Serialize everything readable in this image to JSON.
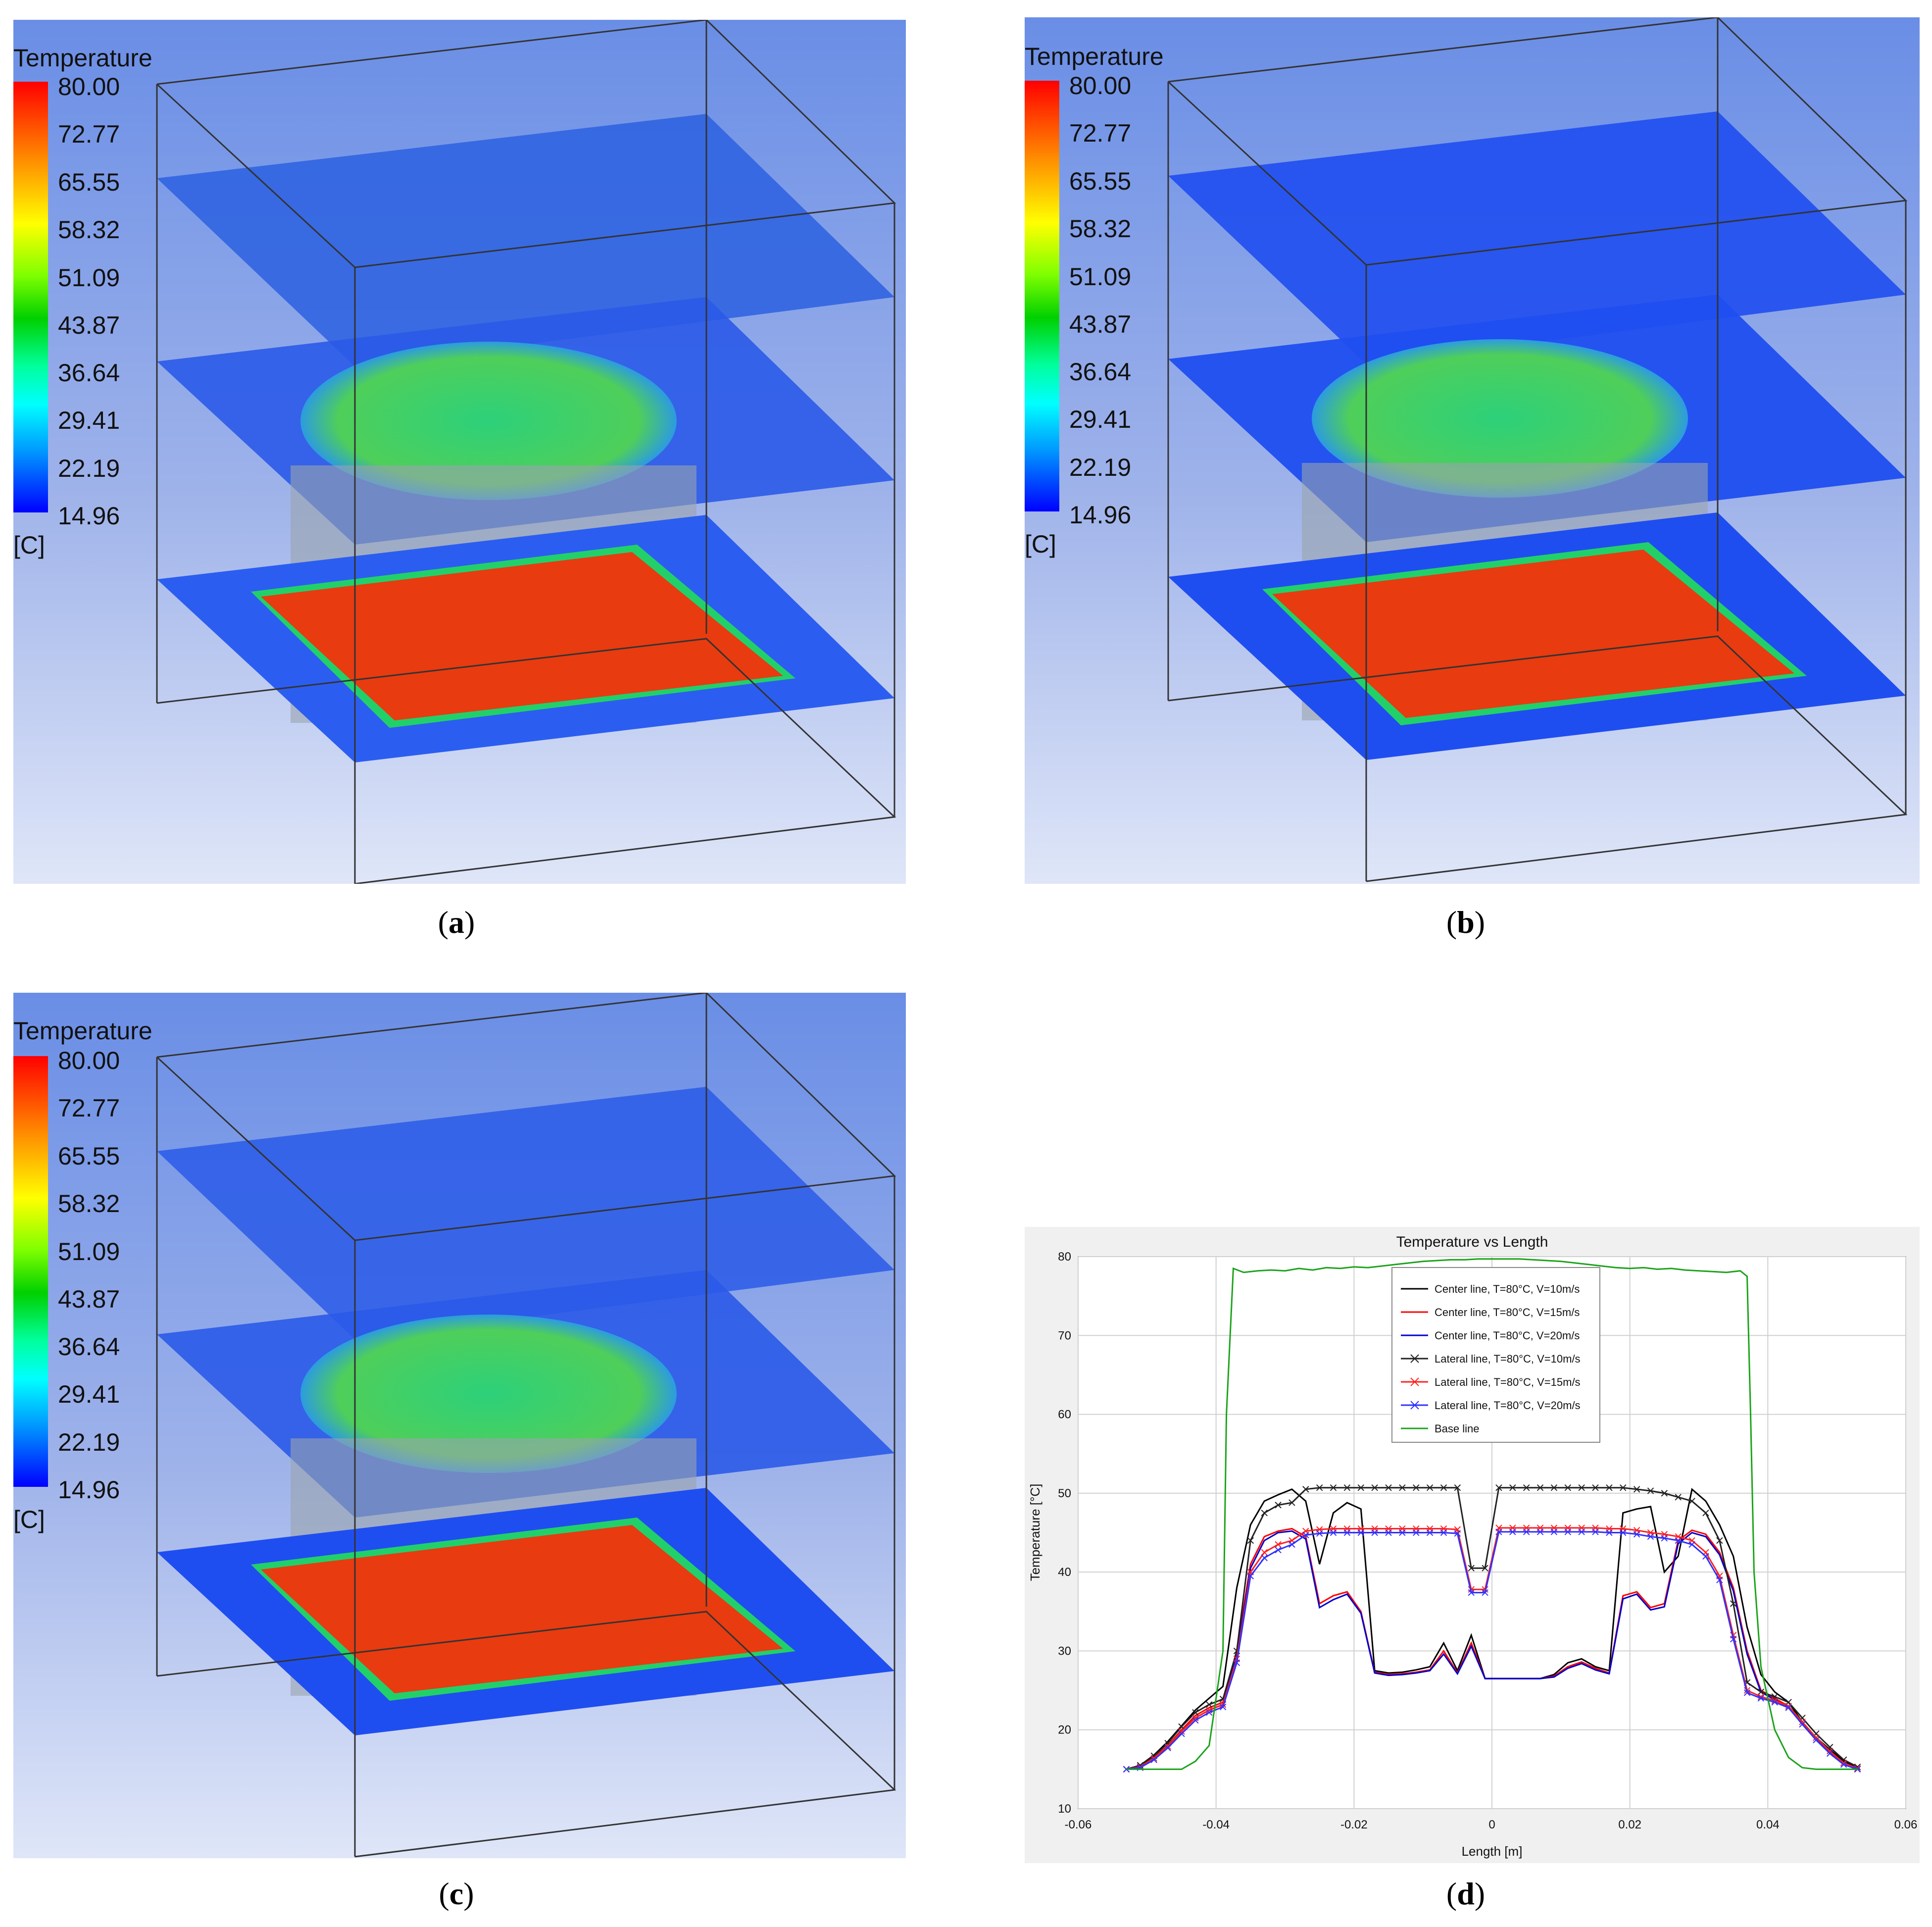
{
  "panels": {
    "a": {
      "legend": {
        "title": "Temperature",
        "ticks": [
          "80.00",
          "72.77",
          "65.55",
          "58.32",
          "51.09",
          "43.87",
          "36.64",
          "29.41",
          "22.19",
          "14.96"
        ],
        "unit": "[C]"
      },
      "caption": "a"
    },
    "b": {
      "legend": {
        "title": "Temperature",
        "ticks": [
          "80.00",
          "72.77",
          "65.55",
          "58.32",
          "51.09",
          "43.87",
          "36.64",
          "29.41",
          "22.19",
          "14.96"
        ],
        "unit": "[C]"
      },
      "caption": "b"
    },
    "c": {
      "legend": {
        "title": "Temperature",
        "ticks": [
          "80.00",
          "72.77",
          "65.55",
          "58.32",
          "51.09",
          "43.87",
          "36.64",
          "29.41",
          "22.19",
          "14.96"
        ],
        "unit": "[C]"
      },
      "caption": "c"
    },
    "d": {
      "caption": "d"
    }
  },
  "colors": {
    "center_10": "#000000",
    "center_15": "#ff0000",
    "center_20": "#0000cc",
    "lateral_10": "#222222",
    "lateral_15": "#ff2020",
    "lateral_20": "#3030ff",
    "base": "#1aa31a"
  },
  "chart_data": {
    "type": "line",
    "title": "Temperature vs Length",
    "xlabel": "Length [m]",
    "ylabel": "Temperature [°C]",
    "xlim": [
      -0.06,
      0.06
    ],
    "ylim": [
      10,
      80
    ],
    "xticks": [
      -0.06,
      -0.04,
      -0.02,
      0,
      0.02,
      0.04,
      0.06
    ],
    "xtick_labels": [
      "-0.06",
      "-0.04",
      "-0.02",
      "0",
      "0.02",
      "0.04",
      "0.06"
    ],
    "yticks": [
      10,
      20,
      30,
      40,
      50,
      60,
      70,
      80
    ],
    "ytick_labels": [
      "10",
      "20",
      "30",
      "40",
      "50",
      "60",
      "70",
      "80"
    ],
    "grid": true,
    "legend_position": "top-center",
    "series": [
      {
        "name": "Center line, T=80°C, V=10m/s",
        "color_key": "center_10",
        "marker": "none",
        "x": [
          -0.053,
          -0.051,
          -0.049,
          -0.047,
          -0.045,
          -0.043,
          -0.041,
          -0.039,
          -0.037,
          -0.035,
          -0.033,
          -0.031,
          -0.029,
          -0.027,
          -0.025,
          -0.023,
          -0.021,
          -0.019,
          -0.017,
          -0.015,
          -0.013,
          -0.011,
          -0.009,
          -0.007,
          -0.005,
          -0.003,
          -0.001,
          0.001,
          0.003,
          0.005,
          0.007,
          0.009,
          0.011,
          0.013,
          0.015,
          0.017,
          0.019,
          0.021,
          0.023,
          0.025,
          0.027,
          0.029,
          0.031,
          0.033,
          0.035,
          0.037,
          0.039,
          0.041,
          0.043,
          0.045,
          0.047,
          0.049,
          0.051,
          0.053
        ],
        "y": [
          15,
          15.5,
          16.8,
          18.5,
          20.5,
          22.5,
          24,
          25.5,
          38,
          46,
          49,
          49.8,
          50.5,
          49,
          41,
          47.5,
          48.8,
          48,
          27.5,
          27.2,
          27.3,
          27.6,
          28,
          31,
          27.5,
          32,
          26.5,
          26.5,
          26.5,
          26.5,
          26.5,
          27,
          28.5,
          29,
          28,
          27.5,
          47.5,
          48,
          48.3,
          40,
          42,
          50.5,
          49,
          46,
          42,
          33,
          27,
          24.8,
          23.5,
          21,
          19,
          17.5,
          16,
          15.2
        ]
      },
      {
        "name": "Center line, T=80°C, V=15m/s",
        "color_key": "center_15",
        "marker": "none",
        "x": [
          -0.053,
          -0.051,
          -0.049,
          -0.047,
          -0.045,
          -0.043,
          -0.041,
          -0.039,
          -0.037,
          -0.035,
          -0.033,
          -0.031,
          -0.029,
          -0.027,
          -0.025,
          -0.023,
          -0.021,
          -0.019,
          -0.017,
          -0.015,
          -0.013,
          -0.011,
          -0.009,
          -0.007,
          -0.005,
          -0.003,
          -0.001,
          0.001,
          0.003,
          0.005,
          0.007,
          0.009,
          0.011,
          0.013,
          0.015,
          0.017,
          0.019,
          0.021,
          0.023,
          0.025,
          0.027,
          0.029,
          0.031,
          0.033,
          0.035,
          0.037,
          0.039,
          0.041,
          0.043,
          0.045,
          0.047,
          0.049,
          0.051,
          0.053
        ],
        "y": [
          15,
          15.4,
          16.5,
          18,
          20,
          21.8,
          22.8,
          23.5,
          30,
          41,
          44.5,
          45.2,
          45.5,
          44.5,
          36,
          37,
          37.5,
          35,
          27.3,
          27,
          27.1,
          27.3,
          27.6,
          30,
          27.2,
          31,
          26.5,
          26.5,
          26.5,
          26.5,
          26.5,
          26.8,
          28,
          28.6,
          27.8,
          27.2,
          37,
          37.5,
          35.5,
          36,
          44,
          45.3,
          44.8,
          42.5,
          38,
          30,
          25,
          24,
          23,
          21,
          19,
          17.2,
          15.8,
          15.1
        ]
      },
      {
        "name": "Center line, T=80°C, V=20m/s",
        "color_key": "center_20",
        "marker": "none",
        "x": [
          -0.053,
          -0.051,
          -0.049,
          -0.047,
          -0.045,
          -0.043,
          -0.041,
          -0.039,
          -0.037,
          -0.035,
          -0.033,
          -0.031,
          -0.029,
          -0.027,
          -0.025,
          -0.023,
          -0.021,
          -0.019,
          -0.017,
          -0.015,
          -0.013,
          -0.011,
          -0.009,
          -0.007,
          -0.005,
          -0.003,
          -0.001,
          0.001,
          0.003,
          0.005,
          0.007,
          0.009,
          0.011,
          0.013,
          0.015,
          0.017,
          0.019,
          0.021,
          0.023,
          0.025,
          0.027,
          0.029,
          0.031,
          0.033,
          0.035,
          0.037,
          0.039,
          0.041,
          0.043,
          0.045,
          0.047,
          0.049,
          0.051,
          0.053
        ],
        "y": [
          15,
          15.3,
          16.3,
          17.8,
          19.8,
          21.5,
          22.5,
          23.2,
          29.5,
          40.5,
          44,
          45,
          45.2,
          44.2,
          35.5,
          36.5,
          37.2,
          34.8,
          27.2,
          26.9,
          27,
          27.2,
          27.5,
          29.6,
          27.1,
          30.6,
          26.5,
          26.5,
          26.5,
          26.5,
          26.5,
          26.7,
          27.8,
          28.4,
          27.6,
          27.1,
          36.6,
          37.2,
          35.2,
          35.6,
          43.6,
          45,
          44.5,
          42.2,
          37.6,
          29.6,
          24.8,
          23.8,
          22.8,
          20.8,
          18.8,
          17,
          15.6,
          15
        ]
      },
      {
        "name": "Lateral line, T=80°C, V=10m/s",
        "color_key": "lateral_10",
        "marker": "x",
        "x": [
          -0.053,
          -0.051,
          -0.049,
          -0.047,
          -0.045,
          -0.043,
          -0.041,
          -0.039,
          -0.037,
          -0.035,
          -0.033,
          -0.031,
          -0.029,
          -0.027,
          -0.025,
          -0.023,
          -0.021,
          -0.019,
          -0.017,
          -0.015,
          -0.013,
          -0.011,
          -0.009,
          -0.007,
          -0.005,
          -0.003,
          -0.001,
          0.001,
          0.003,
          0.005,
          0.007,
          0.009,
          0.011,
          0.013,
          0.015,
          0.017,
          0.019,
          0.021,
          0.023,
          0.025,
          0.027,
          0.029,
          0.031,
          0.033,
          0.035,
          0.037,
          0.039,
          0.041,
          0.043,
          0.045,
          0.047,
          0.049,
          0.051,
          0.053
        ],
        "y": [
          15,
          15.5,
          16.7,
          18.3,
          20.4,
          22.2,
          23.2,
          23.9,
          30,
          44,
          47.5,
          48.5,
          48.8,
          50.5,
          50.7,
          50.7,
          50.7,
          50.7,
          50.7,
          50.7,
          50.7,
          50.7,
          50.7,
          50.7,
          50.7,
          40.5,
          40.5,
          50.7,
          50.7,
          50.7,
          50.7,
          50.7,
          50.7,
          50.7,
          50.7,
          50.7,
          50.7,
          50.5,
          50.3,
          50,
          49.5,
          49,
          47.5,
          44,
          36,
          26,
          24.8,
          24.2,
          23.5,
          21.5,
          19.5,
          17.8,
          16.2,
          15.3
        ]
      },
      {
        "name": "Lateral line, T=80°C, V=15m/s",
        "color_key": "lateral_15",
        "marker": "x",
        "x": [
          -0.053,
          -0.051,
          -0.049,
          -0.047,
          -0.045,
          -0.043,
          -0.041,
          -0.039,
          -0.037,
          -0.035,
          -0.033,
          -0.031,
          -0.029,
          -0.027,
          -0.025,
          -0.023,
          -0.021,
          -0.019,
          -0.017,
          -0.015,
          -0.013,
          -0.011,
          -0.009,
          -0.007,
          -0.005,
          -0.003,
          -0.001,
          0.001,
          0.003,
          0.005,
          0.007,
          0.009,
          0.011,
          0.013,
          0.015,
          0.017,
          0.019,
          0.021,
          0.023,
          0.025,
          0.027,
          0.029,
          0.031,
          0.033,
          0.035,
          0.037,
          0.039,
          0.041,
          0.043,
          0.045,
          0.047,
          0.049,
          0.051,
          0.053
        ],
        "y": [
          15,
          15.3,
          16.4,
          17.9,
          19.8,
          21.5,
          22.5,
          23.2,
          29,
          40,
          42.5,
          43.5,
          44,
          45.2,
          45.4,
          45.5,
          45.5,
          45.5,
          45.5,
          45.5,
          45.5,
          45.5,
          45.5,
          45.5,
          45.4,
          37.8,
          37.8,
          45.6,
          45.6,
          45.6,
          45.6,
          45.6,
          45.6,
          45.6,
          45.6,
          45.5,
          45.5,
          45.3,
          45,
          44.8,
          44.5,
          44,
          42.5,
          39.5,
          32,
          25,
          24.2,
          23.7,
          23,
          21,
          19,
          17.3,
          15.8,
          15.1
        ]
      },
      {
        "name": "Lateral line, T=80°C, V=20m/s",
        "color_key": "lateral_20",
        "marker": "x",
        "x": [
          -0.053,
          -0.051,
          -0.049,
          -0.047,
          -0.045,
          -0.043,
          -0.041,
          -0.039,
          -0.037,
          -0.035,
          -0.033,
          -0.031,
          -0.029,
          -0.027,
          -0.025,
          -0.023,
          -0.021,
          -0.019,
          -0.017,
          -0.015,
          -0.013,
          -0.011,
          -0.009,
          -0.007,
          -0.005,
          -0.003,
          -0.001,
          0.001,
          0.003,
          0.005,
          0.007,
          0.009,
          0.011,
          0.013,
          0.015,
          0.017,
          0.019,
          0.021,
          0.023,
          0.025,
          0.027,
          0.029,
          0.031,
          0.033,
          0.035,
          0.037,
          0.039,
          0.041,
          0.043,
          0.045,
          0.047,
          0.049,
          0.051,
          0.053
        ],
        "y": [
          15,
          15.2,
          16.2,
          17.7,
          19.5,
          21.2,
          22.2,
          22.9,
          28.5,
          39.5,
          41.8,
          42.8,
          43.5,
          44.7,
          44.9,
          45,
          45,
          45,
          45,
          45,
          45,
          45,
          45,
          45,
          44.9,
          37.4,
          37.4,
          45.1,
          45.1,
          45.1,
          45.1,
          45.1,
          45.1,
          45.1,
          45.1,
          45,
          45,
          44.8,
          44.5,
          44.3,
          44,
          43.5,
          42,
          39,
          31.5,
          24.7,
          24,
          23.5,
          22.8,
          20.7,
          18.7,
          17,
          15.6,
          15
        ]
      },
      {
        "name": "Base line",
        "color_key": "base",
        "marker": "none",
        "x": [
          -0.053,
          -0.051,
          -0.049,
          -0.047,
          -0.045,
          -0.043,
          -0.041,
          -0.039,
          -0.0385,
          -0.0375,
          -0.036,
          -0.034,
          -0.032,
          -0.03,
          -0.028,
          -0.026,
          -0.024,
          -0.022,
          -0.02,
          -0.018,
          -0.016,
          -0.014,
          -0.012,
          -0.01,
          -0.008,
          -0.006,
          -0.004,
          -0.002,
          0,
          0.002,
          0.004,
          0.006,
          0.008,
          0.01,
          0.012,
          0.014,
          0.016,
          0.018,
          0.02,
          0.022,
          0.024,
          0.026,
          0.028,
          0.03,
          0.032,
          0.034,
          0.036,
          0.037,
          0.0375,
          0.038,
          0.039,
          0.041,
          0.043,
          0.045,
          0.047,
          0.049,
          0.051,
          0.053
        ],
        "y": [
          15,
          15,
          15,
          15,
          15,
          16,
          18,
          30,
          60,
          78.5,
          78,
          78.2,
          78.3,
          78.2,
          78.5,
          78.3,
          78.6,
          78.5,
          78.7,
          78.6,
          78.8,
          79,
          79.2,
          79.4,
          79.5,
          79.6,
          79.6,
          79.7,
          79.7,
          79.7,
          79.7,
          79.6,
          79.5,
          79.4,
          79.2,
          79,
          78.8,
          78.6,
          78.5,
          78.6,
          78.4,
          78.5,
          78.3,
          78.2,
          78.1,
          78,
          78.2,
          77.5,
          60,
          40,
          28,
          20,
          16.5,
          15.2,
          15,
          15,
          15,
          15
        ]
      }
    ]
  }
}
